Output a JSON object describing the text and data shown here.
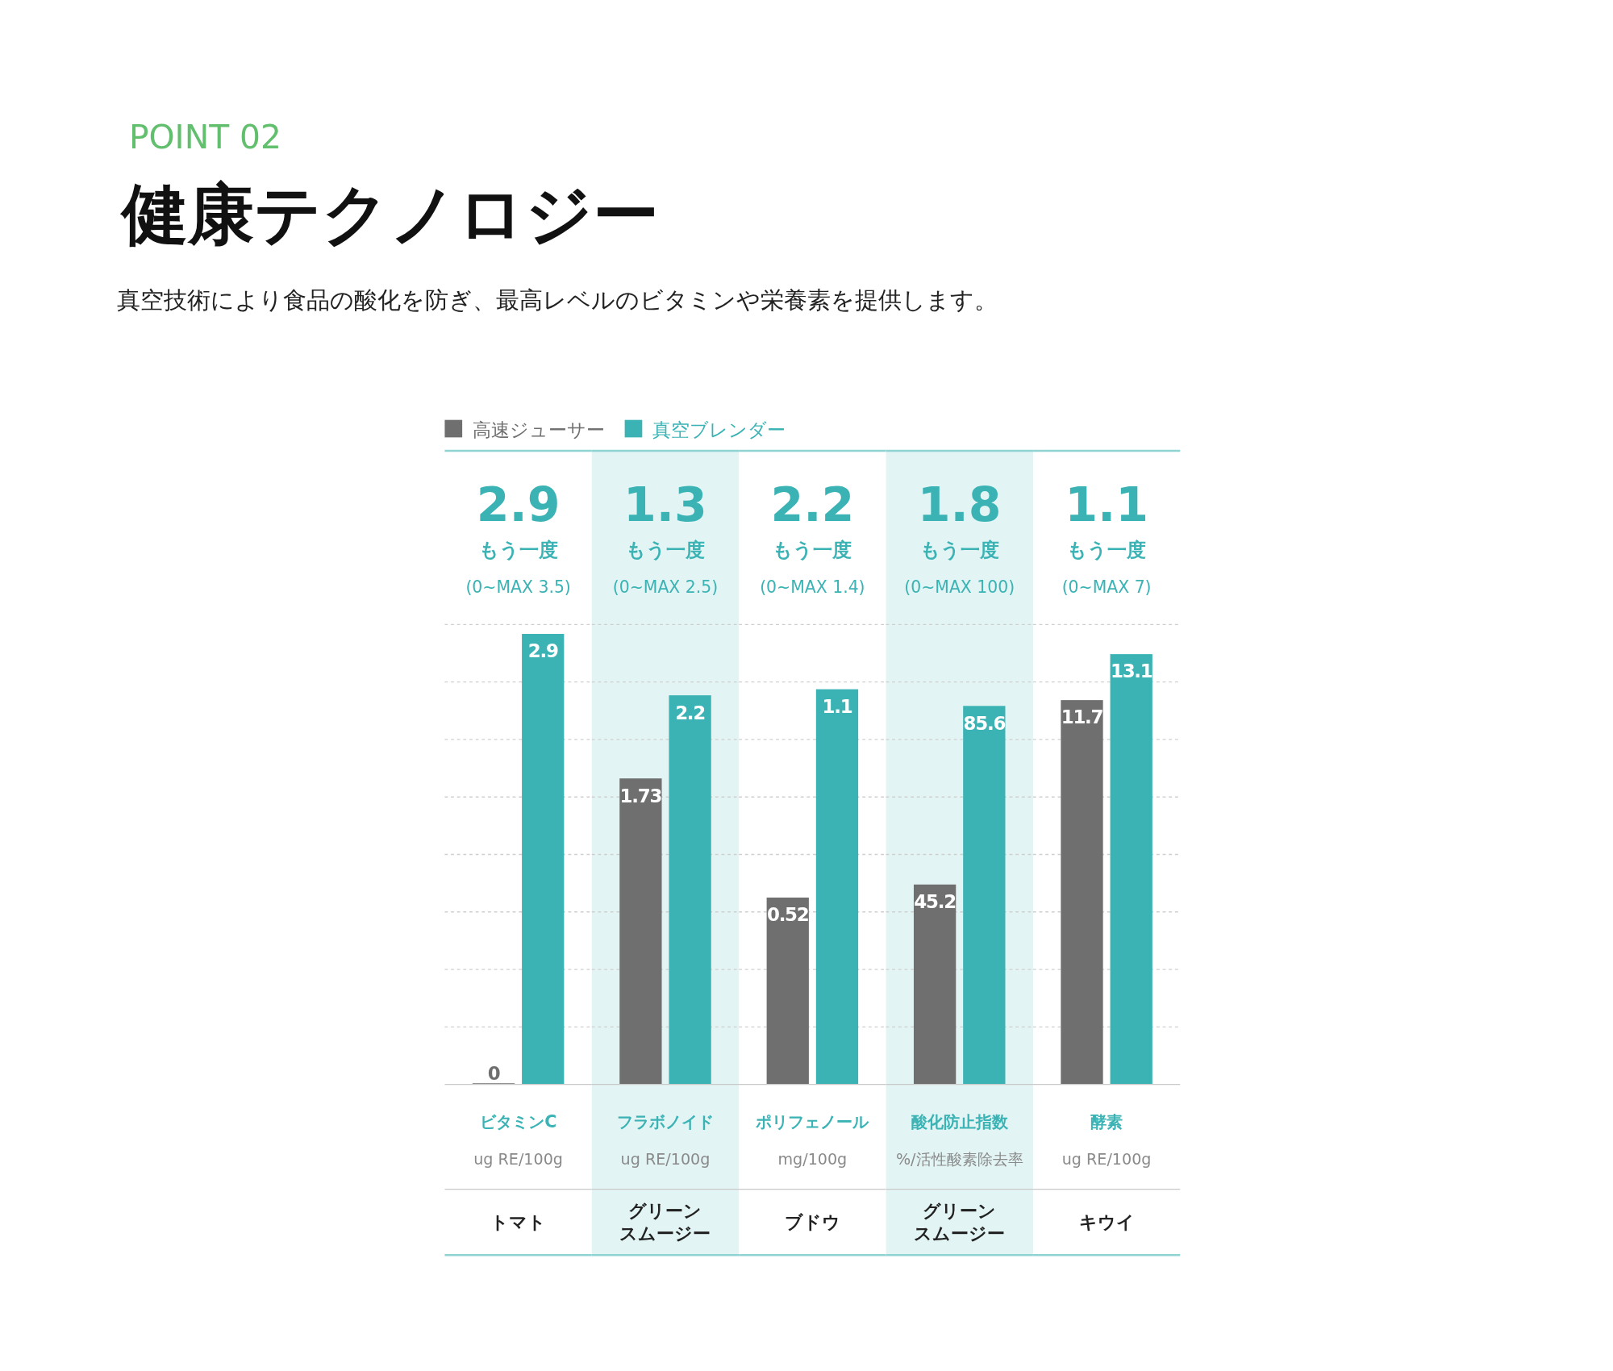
{
  "chart_data": [
    {
      "type": "bar",
      "title": "健康テクノロジー",
      "subtitle": "真空技術により食品の酸化を防ぎ、最高レベルのビタミンや栄養素を提供します。",
      "annotations": [
        "POINT 02",
        "2.9",
        "もう一度",
        "(0~MAX 3.5)",
        "トマト"
      ],
      "categories": [
        "ビタミンC"
      ],
      "xlabel": "ug RE/100g",
      "legend": "top",
      "grid": "y",
      "data_labels": true,
      "ylim": [
        0,
        2.96
      ],
      "yticks": [
        {
          "value": 0.37,
          "label": null
        },
        {
          "value": 0.74,
          "label": null
        },
        {
          "value": 1.11,
          "label": null
        },
        {
          "value": 1.48,
          "label": null
        },
        {
          "value": 1.85,
          "label": null
        },
        {
          "value": 2.22,
          "label": null
        },
        {
          "value": 2.59,
          "label": null
        },
        {
          "value": 2.96,
          "label": null
        }
      ],
      "series": [
        {
          "name": "高速ジューサー",
          "color": "#6f6f6f",
          "values": [
            0
          ]
        },
        {
          "name": "真空ブレンダー",
          "color": "#3bb3b5",
          "values": [
            2.9
          ]
        }
      ]
    },
    {
      "type": "bar",
      "annotations": [
        "1.3",
        "もう一度",
        "(0~MAX 2.5)",
        "グリーンスムージー"
      ],
      "categories": [
        "フラボノイド"
      ],
      "xlabel": "ug RE/100g",
      "grid": "y",
      "data_labels": true,
      "ylim": [
        0,
        2.6
      ],
      "yticks": [
        {
          "value": 0.325,
          "label": null
        },
        {
          "value": 0.65,
          "label": null
        },
        {
          "value": 0.975,
          "label": null
        },
        {
          "value": 1.3,
          "label": null
        },
        {
          "value": 1.625,
          "label": null
        },
        {
          "value": 1.95,
          "label": null
        },
        {
          "value": 2.275,
          "label": null
        },
        {
          "value": 2.6,
          "label": null
        }
      ],
      "series": [
        {
          "color": "#6f6f6f",
          "values": [
            1.73
          ]
        },
        {
          "color": "#3bb3b5",
          "values": [
            2.2
          ]
        }
      ]
    },
    {
      "type": "bar",
      "annotations": [
        "2.2",
        "もう一度",
        "(0~MAX 1.4)",
        "ブドウ"
      ],
      "categories": [
        "ポリフェノール"
      ],
      "xlabel": "mg/100g",
      "grid": "y",
      "data_labels": true,
      "ylim": [
        0,
        1.28
      ],
      "yticks": [
        {
          "value": 0.16,
          "label": null
        },
        {
          "value": 0.32,
          "label": null
        },
        {
          "value": 0.48,
          "label": null
        },
        {
          "value": 0.64,
          "label": null
        },
        {
          "value": 0.8,
          "label": null
        },
        {
          "value": 0.96,
          "label": null
        },
        {
          "value": 1.12,
          "label": null
        },
        {
          "value": 1.28,
          "label": null
        }
      ],
      "series": [
        {
          "color": "#6f6f6f",
          "values": [
            0.52
          ]
        },
        {
          "color": "#3bb3b5",
          "values": [
            1.1
          ]
        }
      ]
    },
    {
      "type": "bar",
      "annotations": [
        "1.8",
        "もう一度",
        "(0~MAX 100)",
        "グリーンスムージー"
      ],
      "categories": [
        "酸化防止指数"
      ],
      "xlabel": "%/活性酸素除去率",
      "grid": "y",
      "data_labels": true,
      "ylim": [
        0,
        104
      ],
      "yticks": [
        {
          "value": 13,
          "label": null
        },
        {
          "value": 26,
          "label": null
        },
        {
          "value": 39,
          "label": null
        },
        {
          "value": 52,
          "label": null
        },
        {
          "value": 65,
          "label": null
        },
        {
          "value": 78,
          "label": null
        },
        {
          "value": 91,
          "label": null
        },
        {
          "value": 104,
          "label": null
        }
      ],
      "series": [
        {
          "color": "#6f6f6f",
          "values": [
            45.2
          ]
        },
        {
          "color": "#3bb3b5",
          "values": [
            85.6
          ]
        }
      ]
    },
    {
      "type": "bar",
      "annotations": [
        "1.1",
        "もう一度",
        "(0~MAX 7)",
        "キウイ"
      ],
      "categories": [
        "酵素"
      ],
      "xlabel": "ug RE/100g",
      "grid": "y",
      "data_labels": true,
      "ylim": [
        0,
        14
      ],
      "yticks": [
        {
          "value": 1.75,
          "label": null
        },
        {
          "value": 3.5,
          "label": null
        },
        {
          "value": 5.25,
          "label": null
        },
        {
          "value": 7,
          "label": null
        },
        {
          "value": 8.75,
          "label": null
        },
        {
          "value": 10.5,
          "label": null
        },
        {
          "value": 12.25,
          "label": null
        },
        {
          "value": 14,
          "label": null
        }
      ],
      "series": [
        {
          "color": "#6f6f6f",
          "values": [
            11.7
          ]
        },
        {
          "color": "#3bb3b5",
          "values": [
            13.1
          ]
        }
      ]
    }
  ]
}
